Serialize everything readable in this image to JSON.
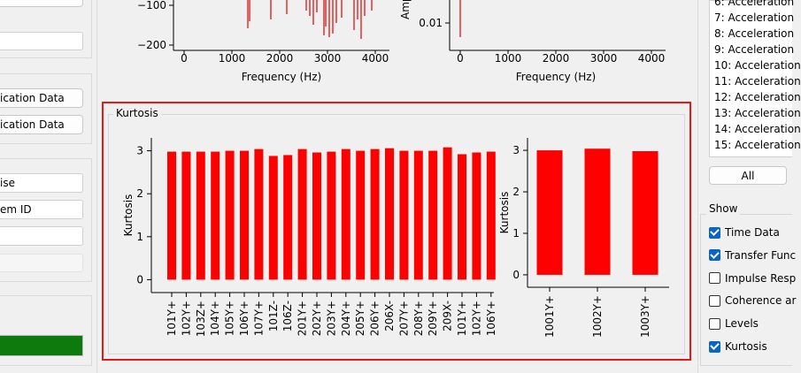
{
  "left_panel": {
    "buttons_group": {
      "button_1": "ication Data",
      "button_2": "ication Data"
    },
    "metadata_group": {
      "field_1": "ise",
      "field_2": "em ID",
      "field_3": "",
      "field_4": ""
    },
    "progress_color": "#0d7a0d"
  },
  "top_plots": {
    "left": {
      "xlabel": "Frequency (Hz)",
      "x_ticks": [
        "0",
        "1000",
        "2000",
        "3000",
        "4000"
      ],
      "y_ticks": [
        "−100",
        "−200"
      ]
    },
    "right": {
      "xlabel": "Frequency (Hz)",
      "ylabel": "Amp",
      "x_ticks": [
        "0",
        "1000",
        "2000",
        "3000",
        "4000"
      ],
      "y_ticks": [
        "0.01"
      ]
    }
  },
  "kurtosis_group": {
    "title": "Kurtosis"
  },
  "chart_data": [
    {
      "type": "bar",
      "ylabel": "Kurtosis",
      "ylim": [
        -0.3,
        3.3
      ],
      "yticks": [
        "0",
        "1",
        "2",
        "3"
      ],
      "color": "#ff0000",
      "categories": [
        "101Y+",
        "102Y+",
        "103Z+",
        "104Y+",
        "105Y+",
        "106Y+",
        "107Y+",
        "101Z-",
        "106Z-",
        "201Y+",
        "202Y+",
        "203Y+",
        "204Y+",
        "205Y+",
        "206Y+",
        "206X-",
        "207Y+",
        "208Y+",
        "209Y+",
        "209X-",
        "101Y+",
        "102Y+",
        "106Y+"
      ],
      "values": [
        2.98,
        2.98,
        2.98,
        2.98,
        3.0,
        3.0,
        3.04,
        2.88,
        2.9,
        3.04,
        2.96,
        2.98,
        3.04,
        3.0,
        3.04,
        3.06,
        3.0,
        3.0,
        3.0,
        3.08,
        2.92,
        2.96,
        2.98
      ]
    },
    {
      "type": "bar",
      "ylabel": "Kurtosis",
      "ylim": [
        -0.3,
        3.3
      ],
      "yticks": [
        "0",
        "1",
        "2",
        "3"
      ],
      "color": "#ff0000",
      "categories": [
        "1001Y+",
        "1002Y+",
        "1003Y+"
      ],
      "values": [
        3.0,
        3.04,
        2.98
      ]
    }
  ],
  "channel_list": {
    "items": [
      "6: Acceleration",
      "7: Acceleration",
      "8: Acceleration",
      "9: Acceleration",
      "10: Acceleration",
      "11: Acceleration",
      "12: Acceleration",
      "13: Acceleration",
      "14: Acceleration",
      "15: Acceleration"
    ],
    "all_label": "All"
  },
  "show_group": {
    "title": "Show",
    "options": [
      {
        "label": "Time Data",
        "checked": true
      },
      {
        "label": "Transfer Func",
        "checked": true
      },
      {
        "label": "Impulse Resp",
        "checked": false
      },
      {
        "label": "Coherence ar",
        "checked": false
      },
      {
        "label": "Levels",
        "checked": false
      },
      {
        "label": "Kurtosis",
        "checked": true
      }
    ]
  }
}
